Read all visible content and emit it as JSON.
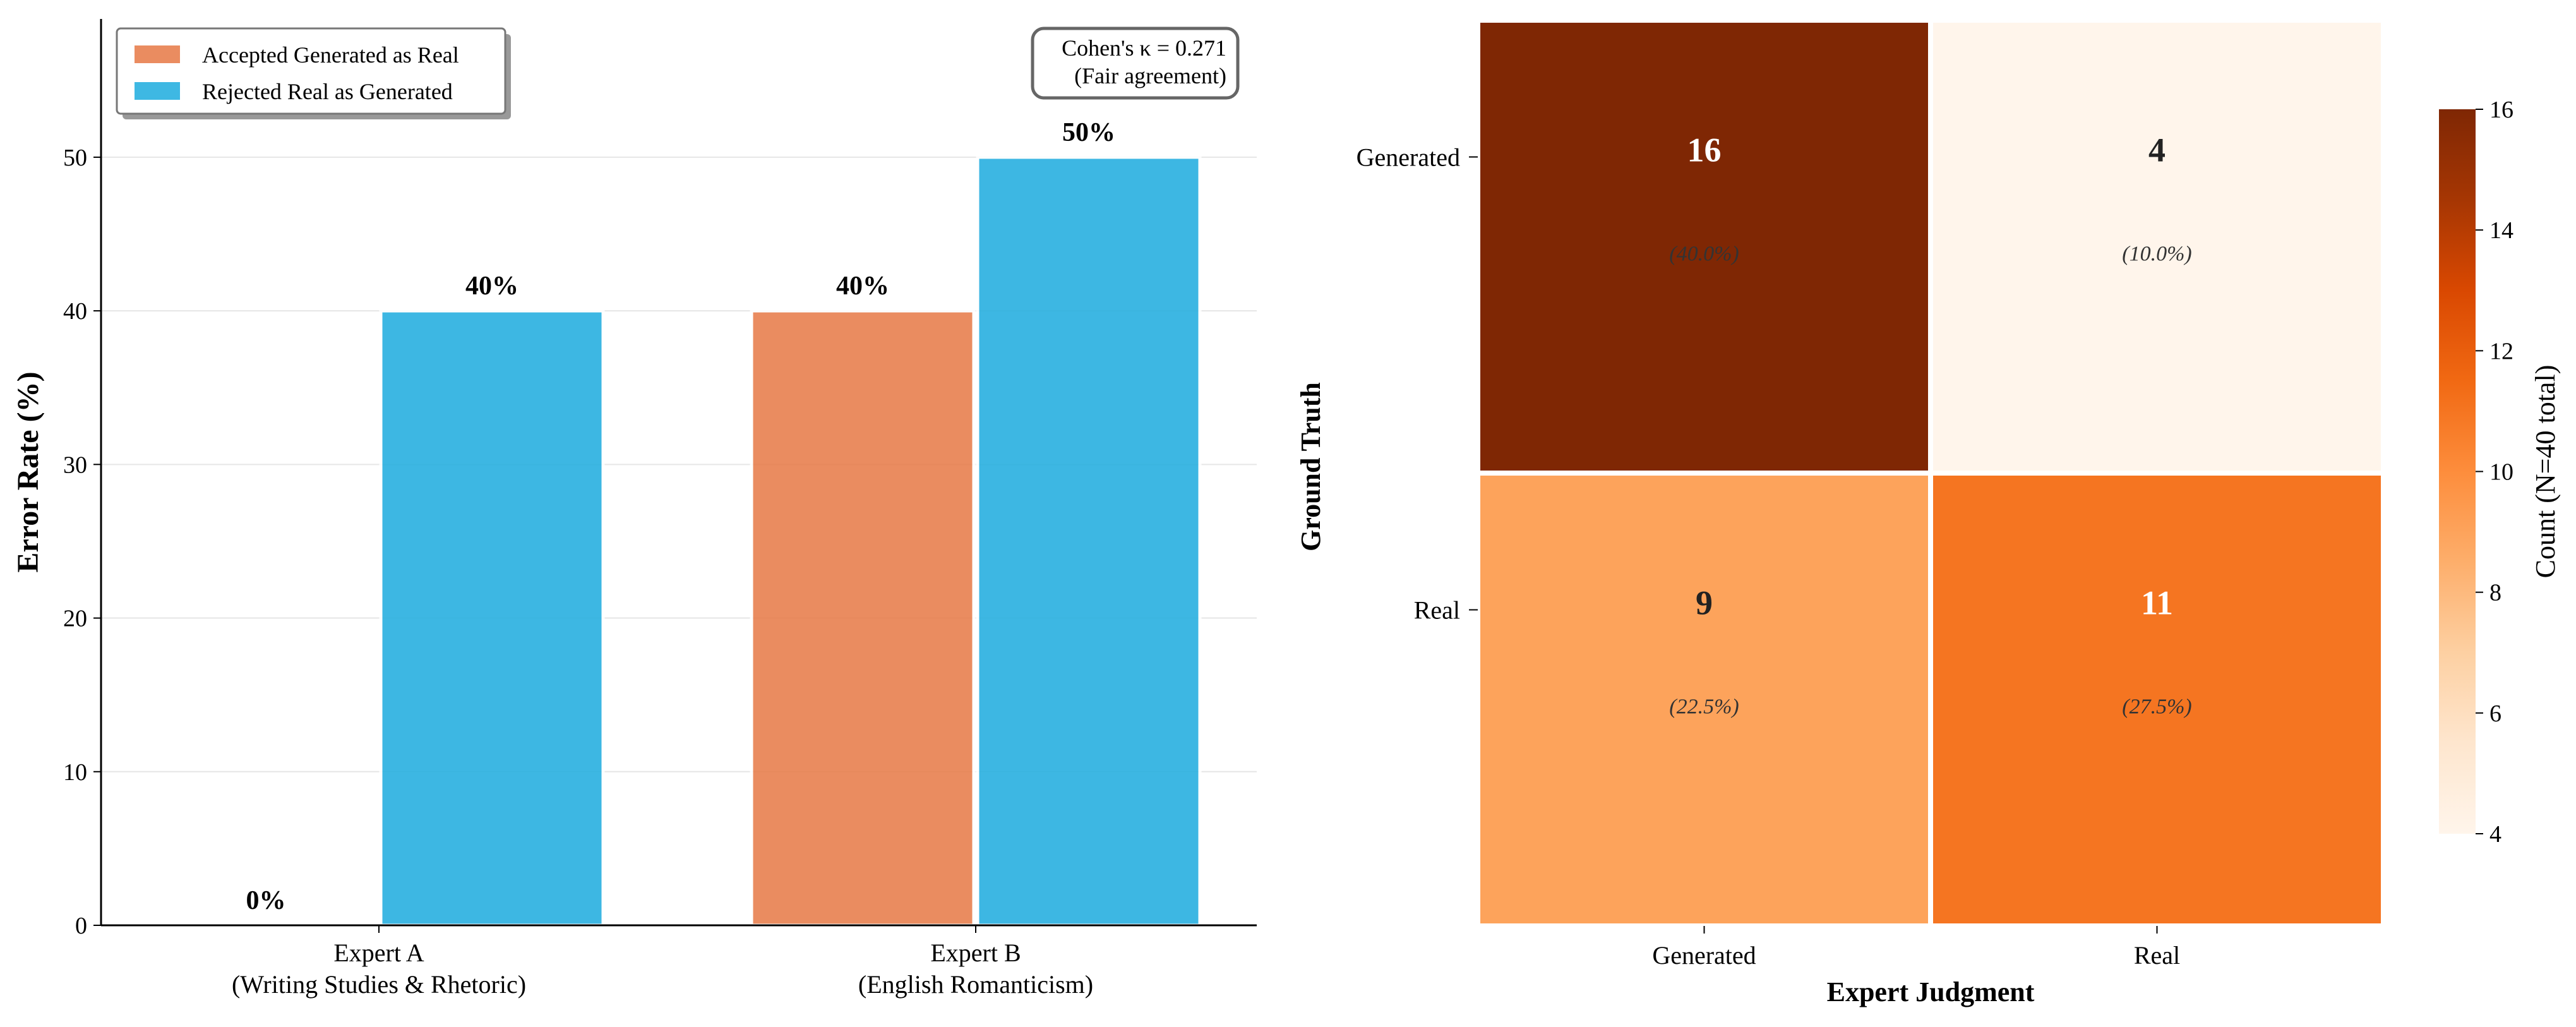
{
  "chart_data": [
    {
      "type": "bar",
      "categories": [
        "Expert A\n(Writing Studies & Rhetoric)",
        "Expert B\n(English Romanticism)"
      ],
      "series": [
        {
          "name": "Accepted Generated as Real",
          "values": [
            0,
            40
          ],
          "color": "#E8804F"
        },
        {
          "name": "Rejected Real as Generated",
          "values": [
            40,
            50
          ],
          "color": "#29B0E0"
        }
      ],
      "value_labels": [
        [
          "0%",
          "40%"
        ],
        [
          "40%",
          "50%"
        ]
      ],
      "title": "",
      "xlabel": "",
      "ylabel": "Error Rate (%)",
      "ylim": [
        0,
        59
      ],
      "yticks": [
        0,
        10,
        20,
        30,
        40,
        50
      ],
      "grid": true,
      "legend_position": "upper-left",
      "annotation": "Cohen's κ = 0.271\n(Fair agreement)"
    },
    {
      "type": "heatmap",
      "rows": [
        "Generated",
        "Real"
      ],
      "columns": [
        "Generated",
        "Real"
      ],
      "values": [
        [
          16,
          4
        ],
        [
          9,
          11
        ]
      ],
      "percent_labels": [
        [
          "(40.0%)",
          "(10.0%)"
        ],
        [
          "(22.5%)",
          "(27.5%)"
        ]
      ],
      "xlabel": "Expert Judgment",
      "ylabel": "Ground Truth",
      "colorbar": {
        "label": "Count (N=40 total)",
        "min": 4,
        "max": 16,
        "ticks": [
          4,
          6,
          8,
          10,
          12,
          14,
          16
        ],
        "colormap": [
          "#FFF5EB",
          "#FEE6CE",
          "#FDD0A2",
          "#FDAE6B",
          "#FD8D3C",
          "#F16913",
          "#D94801",
          "#A63603",
          "#7F2704"
        ]
      }
    }
  ]
}
